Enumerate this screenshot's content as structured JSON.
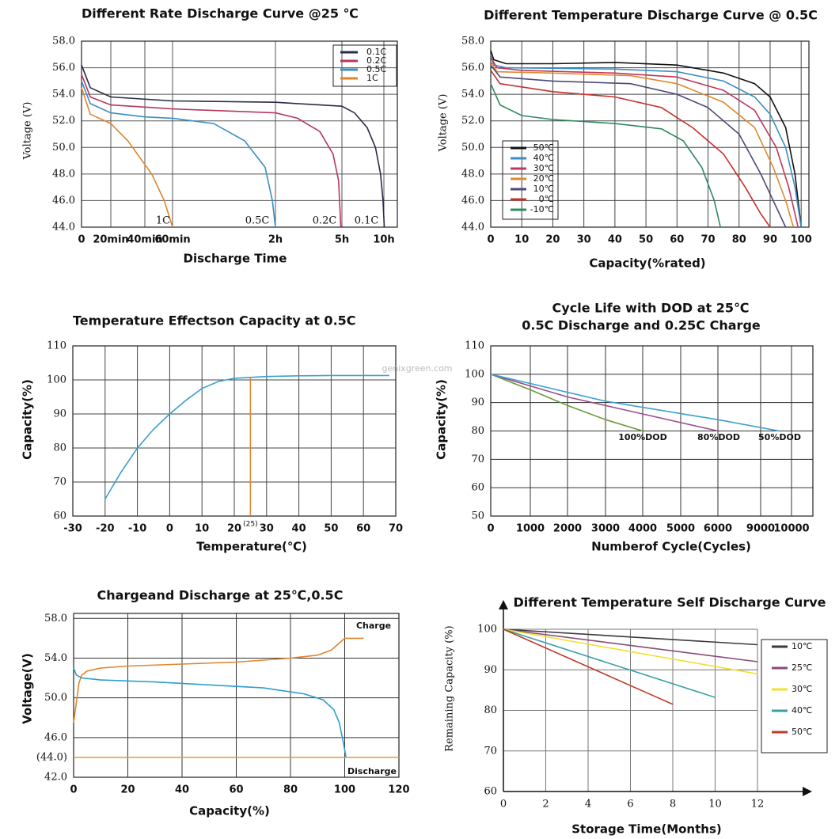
{
  "chart_data": [
    {
      "type": "line",
      "title": "Different Rate Discharge Curve @25 ℃",
      "x_label": "Discharge Time",
      "y_label": "Voltage (V)",
      "xlim": [
        0,
        10.3
      ],
      "ylim": [
        44,
        58
      ],
      "xticks": [
        0,
        {
          "value": 0.333,
          "label": "20min"
        },
        {
          "value": 0.667,
          "label": "40min"
        },
        {
          "value": 1,
          "label": "60min"
        },
        {
          "value": 2,
          "label": "2h"
        },
        {
          "value": 5,
          "label": "5h"
        },
        {
          "value": 10,
          "label": "10h"
        }
      ],
      "yticks": [
        {
          "value": 44,
          "label": "44.0"
        },
        {
          "value": 46,
          "label": "46.0"
        },
        {
          "value": 48,
          "label": "48.0"
        },
        {
          "value": 50,
          "label": "50.0"
        },
        {
          "value": 52,
          "label": "52.0"
        },
        {
          "value": 54,
          "label": "54.0"
        },
        {
          "value": 56,
          "label": "56.0"
        },
        {
          "value": 58,
          "label": "58.0"
        }
      ],
      "grid": true,
      "legend": "upper right",
      "series": [
        {
          "name": "0.1C",
          "color": "#2d2a4a",
          "x": [
            0,
            0.1,
            0.333,
            1,
            2,
            3,
            5,
            6.5,
            8,
            9,
            9.6,
            9.9,
            10.05
          ],
          "values": [
            56.2,
            54.5,
            53.8,
            53.5,
            53.4,
            53.3,
            53.1,
            52.6,
            51.5,
            50,
            48,
            46,
            44
          ]
        },
        {
          "name": "0.2C",
          "color": "#b5385e",
          "x": [
            0,
            0.1,
            0.333,
            1,
            2,
            3,
            4,
            4.6,
            4.85,
            4.95
          ],
          "values": [
            55.5,
            53.8,
            53.2,
            52.9,
            52.6,
            52.2,
            51.2,
            49.5,
            47.5,
            44
          ]
        },
        {
          "name": "0.5C",
          "color": "#3a8fc4",
          "x": [
            0,
            0.1,
            0.333,
            0.667,
            1,
            1.4,
            1.7,
            1.9,
            1.97,
            2
          ],
          "values": [
            55,
            53.3,
            52.6,
            52.3,
            52.2,
            51.8,
            50.5,
            48.5,
            46,
            44
          ]
        },
        {
          "name": "1C",
          "color": "#e0852d",
          "x": [
            0,
            0.1,
            0.333,
            0.5,
            0.75,
            0.9,
            1
          ],
          "values": [
            54.5,
            52.5,
            51.8,
            50.5,
            48,
            46,
            44
          ]
        }
      ],
      "annotations": [
        "1C",
        "0.5C",
        "0.2C",
        "0.1C"
      ]
    },
    {
      "type": "line",
      "title": "Different Temperature Discharge Curve @ 0.5C",
      "x_label": "Capacity(%rated)",
      "y_label": "Voltage (V)",
      "xlim": [
        0,
        102.5
      ],
      "ylim": [
        44,
        58
      ],
      "xticks": [
        0,
        10,
        20,
        30,
        40,
        50,
        60,
        70,
        80,
        90,
        100
      ],
      "yticks": [
        {
          "value": 44,
          "label": "44.0"
        },
        {
          "value": 46,
          "label": "46.0"
        },
        {
          "value": 48,
          "label": "48.0"
        },
        {
          "value": 50,
          "label": "50.0"
        },
        {
          "value": 52,
          "label": "52.0"
        },
        {
          "value": 54,
          "label": "54.0"
        },
        {
          "value": 56,
          "label": "56.0"
        },
        {
          "value": 58,
          "label": "58.0"
        }
      ],
      "grid": true,
      "legend": "lower left",
      "series": [
        {
          "name": "50℃",
          "color": "#111111",
          "x": [
            0,
            1,
            5,
            20,
            40,
            60,
            75,
            85,
            90,
            95,
            98,
            100
          ],
          "values": [
            57.3,
            56.6,
            56.3,
            56.3,
            56.4,
            56.2,
            55.6,
            54.8,
            53.8,
            51.5,
            48,
            44
          ]
        },
        {
          "name": "40℃",
          "color": "#3a8fc4",
          "x": [
            0,
            1,
            5,
            40,
            60,
            75,
            85,
            90,
            95,
            98,
            100
          ],
          "values": [
            57,
            56.2,
            56,
            55.9,
            55.7,
            55,
            53.8,
            52.5,
            50,
            47,
            44
          ]
        },
        {
          "name": "30℃",
          "color": "#c0365f",
          "x": [
            0,
            2,
            10,
            40,
            60,
            75,
            85,
            92,
            96,
            99
          ],
          "values": [
            56.8,
            56,
            55.8,
            55.6,
            55.3,
            54.3,
            52.8,
            50,
            47,
            44
          ]
        },
        {
          "name": "20℃",
          "color": "#e08a2e",
          "x": [
            0,
            2,
            20,
            45,
            60,
            75,
            85,
            91,
            95,
            97.5
          ],
          "values": [
            56.5,
            55.7,
            55.6,
            55.4,
            54.8,
            53.4,
            51.5,
            48.5,
            46,
            44
          ]
        },
        {
          "name": "10℃",
          "color": "#4b4a78",
          "x": [
            0,
            3,
            20,
            45,
            60,
            70,
            80,
            87,
            92,
            95
          ],
          "values": [
            56.2,
            55.3,
            55,
            54.8,
            54,
            53,
            51,
            48,
            45.5,
            44
          ]
        },
        {
          "name": "0℃",
          "color": "#c9302c",
          "x": [
            0,
            3,
            20,
            40,
            55,
            65,
            75,
            82,
            87,
            90
          ],
          "values": [
            55.8,
            54.8,
            54.2,
            53.8,
            53,
            51.5,
            49.5,
            47,
            45,
            44
          ]
        },
        {
          "name": "-10℃",
          "color": "#2e8a5f",
          "x": [
            0,
            3,
            10,
            20,
            40,
            55,
            62,
            68,
            72,
            74
          ],
          "values": [
            54.8,
            53.2,
            52.4,
            52.1,
            51.8,
            51.4,
            50.5,
            48.5,
            46,
            44
          ]
        }
      ]
    },
    {
      "type": "line",
      "title": "Temperature Effectson Capacity at 0.5C",
      "x_label": "Temperature(℃)",
      "y_label": "Capacity(%)",
      "xlim": [
        -30,
        70
      ],
      "ylim": [
        60,
        110
      ],
      "xticks": [
        -30,
        -20,
        -10,
        0,
        10,
        20,
        30,
        40,
        50,
        60,
        70
      ],
      "yticks": [
        60,
        70,
        80,
        90,
        100,
        110
      ],
      "grid": true,
      "watermark": "genixgreen.com",
      "reference_x": 25,
      "reference_label": "(25)",
      "reference_color": "#e0852d",
      "series": [
        {
          "color": "#3a9fcf",
          "x": [
            -20,
            -15,
            -10,
            -5,
            0,
            5,
            10,
            15,
            20,
            30,
            40,
            50,
            60,
            68
          ],
          "values": [
            65,
            73,
            80,
            85.5,
            90,
            94,
            97.5,
            99.5,
            100.5,
            101,
            101.2,
            101.3,
            101.3,
            101.3
          ]
        }
      ]
    },
    {
      "type": "line",
      "title": "Cycle Life with DOD at 25℃",
      "subtitle": "0.5C Discharge and 0.25C Charge",
      "x_label": "Numberof Cycle(Cycles)",
      "y_label": "Capacity(%)",
      "xlim": [
        0,
        10600
      ],
      "ylim": [
        50,
        110
      ],
      "xticks": [
        0,
        1000,
        2000,
        3000,
        4000,
        5000,
        6000,
        9000,
        10000
      ],
      "yticks": [
        50,
        60,
        70,
        80,
        90,
        100,
        110
      ],
      "grid": true,
      "legend": "labels",
      "series": [
        {
          "name": "100%DOD",
          "color": "#6b9a3a",
          "x": [
            0,
            1000,
            2000,
            3000,
            4000
          ],
          "values": [
            100,
            94.5,
            89,
            84,
            80
          ]
        },
        {
          "name": "80%DOD",
          "color": "#9b4f8c",
          "x": [
            0,
            2000,
            4000,
            6000
          ],
          "values": [
            100,
            92,
            86,
            80
          ]
        },
        {
          "name": "50%DOD",
          "color": "#3a9fcf",
          "x": [
            0,
            3000,
            6000,
            9600
          ],
          "values": [
            100,
            90.5,
            84,
            80
          ]
        }
      ]
    },
    {
      "type": "line",
      "title": "Chargeand Discharge at 25℃,0.5C",
      "x_label": "Capacity(%)",
      "y_label": "Voltage(V)",
      "xlim": [
        0,
        120
      ],
      "ylim": [
        42,
        58.5
      ],
      "xticks": [
        0,
        20,
        40,
        60,
        80,
        100,
        120
      ],
      "yticks": [
        {
          "value": 42,
          "label": "42.0"
        },
        {
          "value": 44,
          "label": "(44.0)"
        },
        {
          "value": 46,
          "label": "46.0"
        },
        {
          "value": 50,
          "label": "50.0"
        },
        {
          "value": 54,
          "label": "54.0"
        },
        {
          "value": 58,
          "label": "58.0"
        }
      ],
      "grid": true,
      "legend": "labels",
      "reference_y": 44,
      "reference_color": "#e0a040",
      "series": [
        {
          "name": "Charge",
          "color": "#e0852d",
          "x": [
            0,
            1,
            2,
            3,
            5,
            10,
            20,
            40,
            60,
            80,
            90,
            95,
            98,
            100,
            107
          ],
          "values": [
            47.5,
            49.5,
            51.5,
            52.3,
            52.7,
            53,
            53.2,
            53.4,
            53.6,
            54,
            54.3,
            54.8,
            55.5,
            56,
            56
          ]
        },
        {
          "name": "Discharge",
          "color": "#2a9fd0",
          "x": [
            0,
            1,
            3,
            10,
            30,
            50,
            70,
            85,
            92,
            96,
            98,
            99.5,
            100.5
          ],
          "values": [
            53,
            52.3,
            52,
            51.8,
            51.6,
            51.3,
            51,
            50.4,
            49.8,
            48.8,
            47.5,
            45.5,
            44
          ]
        }
      ]
    },
    {
      "type": "line",
      "title": "Different Temperature Self Discharge Curve",
      "x_label": "Storage Time(Months)",
      "y_label": "Remaining Capacity (%)",
      "xlim": [
        0,
        12
      ],
      "ylim": [
        60,
        100
      ],
      "xticks": [
        0,
        2,
        4,
        6,
        8,
        10,
        12
      ],
      "yticks": [
        60,
        70,
        80,
        90,
        100
      ],
      "grid": true,
      "legend": "right",
      "series": [
        {
          "name": "10℃",
          "color": "#3a3a3a",
          "x": [
            0,
            12
          ],
          "values": [
            100,
            96.2
          ]
        },
        {
          "name": "25℃",
          "color": "#8a4a7a",
          "x": [
            0,
            12
          ],
          "values": [
            100,
            92
          ]
        },
        {
          "name": "30℃",
          "color": "#f0e030",
          "x": [
            0,
            12
          ],
          "values": [
            100,
            89
          ]
        },
        {
          "name": "40℃",
          "color": "#3aa0a8",
          "x": [
            0,
            10
          ],
          "values": [
            100,
            83.2
          ]
        },
        {
          "name": "50℃",
          "color": "#c03a2a",
          "x": [
            0,
            8
          ],
          "values": [
            100,
            81.5
          ]
        }
      ]
    }
  ]
}
